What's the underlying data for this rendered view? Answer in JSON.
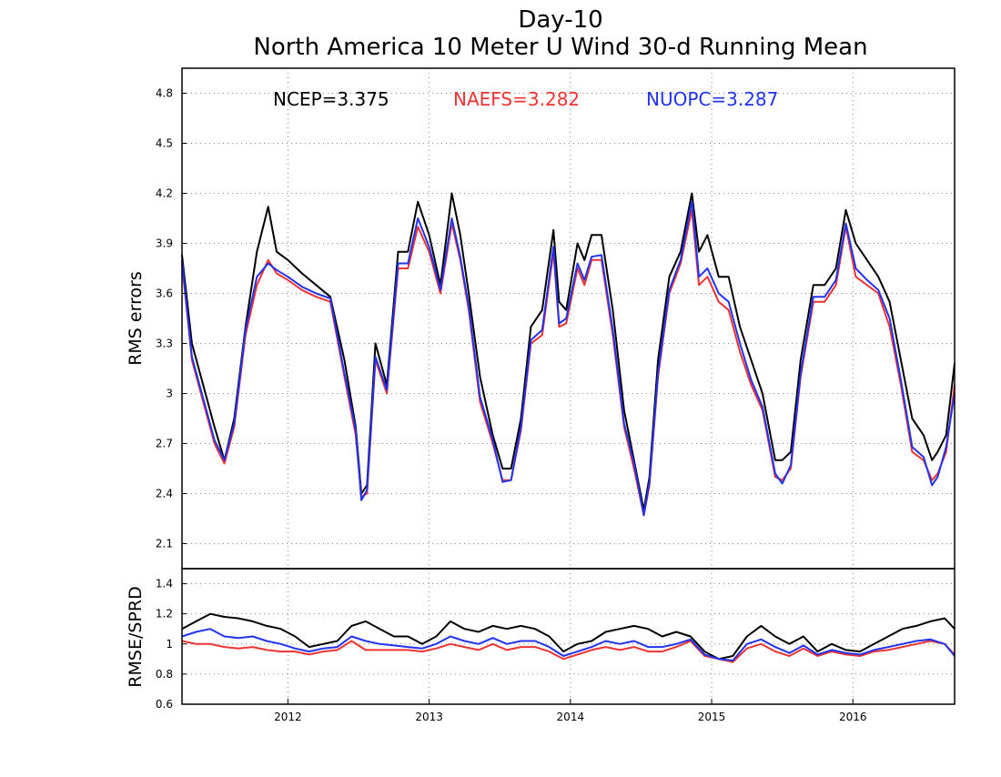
{
  "chart_data": {
    "type": "line",
    "title": "Day-10",
    "subtitle": "North America 10 Meter U Wind 30-d Running Mean",
    "x_tick_labels": [
      "2012",
      "2013",
      "2014",
      "2015",
      "2016"
    ],
    "x_tick_positions": [
      2012.0,
      2013.0,
      2014.0,
      2015.0,
      2016.0
    ],
    "xlim": [
      2011.25,
      2016.72
    ],
    "colors": {
      "NCEP": "#000000",
      "NAEFS": "#ee3333",
      "NUOPC": "#2233ee"
    },
    "panels": [
      {
        "ylabel": "RMS errors",
        "ylim": [
          1.95,
          4.95
        ],
        "y_ticks": [
          2.1,
          2.4,
          2.7,
          3.0,
          3.3,
          3.6,
          3.9,
          4.2,
          4.5,
          4.8
        ],
        "y_tick_labels": [
          "2.1",
          "2.4",
          "2.7",
          "3",
          "3.3",
          "3.6",
          "3.9",
          "4.2",
          "4.5",
          "4.8"
        ],
        "grid": true,
        "legend": [
          {
            "series": "NCEP",
            "label": "NCEP=3.375"
          },
          {
            "series": "NAEFS",
            "label": "NAEFS=3.282"
          },
          {
            "series": "NUOPC",
            "label": "NUOPC=3.287"
          }
        ],
        "series": [
          {
            "name": "NCEP",
            "x": [
              2011.25,
              2011.32,
              2011.4,
              2011.48,
              2011.55,
              2011.62,
              2011.7,
              2011.78,
              2011.86,
              2011.92,
              2012.0,
              2012.1,
              2012.2,
              2012.3,
              2012.4,
              2012.48,
              2012.52,
              2012.56,
              2012.62,
              2012.7,
              2012.78,
              2012.85,
              2012.92,
              2013.0,
              2013.08,
              2013.16,
              2013.22,
              2013.28,
              2013.36,
              2013.45,
              2013.52,
              2013.58,
              2013.65,
              2013.72,
              2013.8,
              2013.88,
              2013.92,
              2013.97,
              2014.05,
              2014.1,
              2014.15,
              2014.22,
              2014.3,
              2014.38,
              2014.45,
              2014.52,
              2014.56,
              2014.62,
              2014.7,
              2014.78,
              2014.86,
              2014.91,
              2014.97,
              2015.05,
              2015.12,
              2015.2,
              2015.28,
              2015.36,
              2015.45,
              2015.5,
              2015.56,
              2015.63,
              2015.72,
              2015.8,
              2015.88,
              2015.95,
              2016.02,
              2016.1,
              2016.18,
              2016.26,
              2016.34,
              2016.42,
              2016.5,
              2016.56,
              2016.6,
              2016.66,
              2016.72
            ],
            "y": [
              3.83,
              3.3,
              3.05,
              2.8,
              2.6,
              2.85,
              3.4,
              3.85,
              4.12,
              3.85,
              3.8,
              3.72,
              3.65,
              3.58,
              3.2,
              2.8,
              2.4,
              2.45,
              3.3,
              3.05,
              3.85,
              3.85,
              4.15,
              3.95,
              3.65,
              4.2,
              3.95,
              3.6,
              3.1,
              2.75,
              2.55,
              2.55,
              2.85,
              3.4,
              3.5,
              3.98,
              3.55,
              3.5,
              3.9,
              3.8,
              3.95,
              3.95,
              3.5,
              2.9,
              2.6,
              2.3,
              2.5,
              3.2,
              3.7,
              3.85,
              4.2,
              3.85,
              3.95,
              3.7,
              3.7,
              3.4,
              3.2,
              3.0,
              2.6,
              2.6,
              2.65,
              3.2,
              3.65,
              3.65,
              3.75,
              4.1,
              3.9,
              3.8,
              3.7,
              3.55,
              3.2,
              2.85,
              2.75,
              2.6,
              2.65,
              2.75,
              3.18
            ]
          },
          {
            "name": "NAEFS",
            "x": [
              2011.25,
              2011.32,
              2011.4,
              2011.48,
              2011.55,
              2011.62,
              2011.7,
              2011.78,
              2011.86,
              2011.92,
              2012.0,
              2012.1,
              2012.2,
              2012.3,
              2012.4,
              2012.48,
              2012.52,
              2012.56,
              2012.62,
              2012.7,
              2012.78,
              2012.85,
              2012.92,
              2013.0,
              2013.08,
              2013.16,
              2013.22,
              2013.28,
              2013.36,
              2013.45,
              2013.52,
              2013.58,
              2013.65,
              2013.72,
              2013.8,
              2013.88,
              2013.92,
              2013.97,
              2014.05,
              2014.1,
              2014.15,
              2014.22,
              2014.3,
              2014.38,
              2014.45,
              2014.52,
              2014.56,
              2014.62,
              2014.7,
              2014.78,
              2014.86,
              2014.91,
              2014.97,
              2015.05,
              2015.12,
              2015.2,
              2015.28,
              2015.36,
              2015.45,
              2015.5,
              2015.56,
              2015.63,
              2015.72,
              2015.8,
              2015.88,
              2015.95,
              2016.02,
              2016.1,
              2016.18,
              2016.26,
              2016.34,
              2016.42,
              2016.5,
              2016.56,
              2016.6,
              2016.66,
              2016.72
            ],
            "y": [
              3.78,
              3.2,
              2.95,
              2.7,
              2.58,
              2.8,
              3.35,
              3.65,
              3.8,
              3.72,
              3.68,
              3.62,
              3.58,
              3.55,
              3.1,
              2.75,
              2.38,
              2.4,
              3.2,
              3.0,
              3.75,
              3.75,
              4.0,
              3.85,
              3.6,
              4.02,
              3.8,
              3.5,
              2.95,
              2.7,
              2.48,
              2.48,
              2.78,
              3.3,
              3.35,
              3.85,
              3.4,
              3.42,
              3.75,
              3.65,
              3.8,
              3.8,
              3.35,
              2.8,
              2.55,
              2.27,
              2.45,
              3.1,
              3.6,
              3.78,
              4.1,
              3.65,
              3.7,
              3.55,
              3.5,
              3.25,
              3.05,
              2.9,
              2.5,
              2.48,
              2.55,
              3.1,
              3.55,
              3.55,
              3.65,
              4.0,
              3.7,
              3.65,
              3.6,
              3.4,
              3.05,
              2.65,
              2.6,
              2.48,
              2.52,
              2.65,
              3.05
            ]
          },
          {
            "name": "NUOPC",
            "x": [
              2011.25,
              2011.32,
              2011.4,
              2011.48,
              2011.55,
              2011.62,
              2011.7,
              2011.78,
              2011.86,
              2011.92,
              2012.0,
              2012.1,
              2012.2,
              2012.3,
              2012.4,
              2012.48,
              2012.52,
              2012.56,
              2012.62,
              2012.7,
              2012.78,
              2012.85,
              2012.92,
              2013.0,
              2013.08,
              2013.16,
              2013.22,
              2013.28,
              2013.36,
              2013.45,
              2013.52,
              2013.58,
              2013.65,
              2013.72,
              2013.8,
              2013.88,
              2013.92,
              2013.97,
              2014.05,
              2014.1,
              2014.15,
              2014.22,
              2014.3,
              2014.38,
              2014.45,
              2014.52,
              2014.56,
              2014.62,
              2014.7,
              2014.78,
              2014.86,
              2014.91,
              2014.97,
              2015.05,
              2015.12,
              2015.2,
              2015.28,
              2015.36,
              2015.45,
              2015.5,
              2015.56,
              2015.63,
              2015.72,
              2015.8,
              2015.88,
              2015.95,
              2016.02,
              2016.1,
              2016.18,
              2016.26,
              2016.34,
              2016.42,
              2016.5,
              2016.56,
              2016.6,
              2016.66,
              2016.72
            ],
            "y": [
              3.8,
              3.22,
              2.97,
              2.72,
              2.6,
              2.82,
              3.38,
              3.7,
              3.78,
              3.74,
              3.7,
              3.64,
              3.6,
              3.57,
              3.12,
              2.78,
              2.36,
              2.42,
              3.22,
              3.02,
              3.78,
              3.78,
              4.05,
              3.88,
              3.62,
              4.05,
              3.82,
              3.52,
              2.98,
              2.72,
              2.47,
              2.48,
              2.8,
              3.32,
              3.38,
              3.88,
              3.42,
              3.45,
              3.78,
              3.68,
              3.82,
              3.83,
              3.38,
              2.82,
              2.58,
              2.27,
              2.47,
              3.12,
              3.62,
              3.8,
              4.15,
              3.7,
              3.75,
              3.6,
              3.55,
              3.3,
              3.08,
              2.92,
              2.52,
              2.46,
              2.57,
              3.12,
              3.58,
              3.58,
              3.68,
              4.02,
              3.75,
              3.68,
              3.62,
              3.45,
              3.08,
              2.68,
              2.62,
              2.45,
              2.5,
              2.68,
              3.0
            ]
          }
        ]
      },
      {
        "ylabel": "RMSE/SPRD",
        "ylim": [
          0.6,
          1.5
        ],
        "y_ticks": [
          0.6,
          0.8,
          1.0,
          1.2,
          1.4
        ],
        "y_tick_labels": [
          "0.6",
          "0.8",
          "1",
          "1.2",
          "1.4"
        ],
        "grid": true,
        "series": [
          {
            "name": "NCEP",
            "x": [
              2011.25,
              2011.35,
              2011.45,
              2011.55,
              2011.65,
              2011.75,
              2011.85,
              2011.95,
              2012.05,
              2012.15,
              2012.25,
              2012.35,
              2012.45,
              2012.55,
              2012.65,
              2012.75,
              2012.85,
              2012.95,
              2013.05,
              2013.15,
              2013.25,
              2013.35,
              2013.45,
              2013.55,
              2013.65,
              2013.75,
              2013.85,
              2013.95,
              2014.05,
              2014.15,
              2014.25,
              2014.35,
              2014.45,
              2014.55,
              2014.65,
              2014.75,
              2014.85,
              2014.95,
              2015.05,
              2015.15,
              2015.25,
              2015.35,
              2015.45,
              2015.55,
              2015.65,
              2015.75,
              2015.85,
              2015.95,
              2016.05,
              2016.15,
              2016.25,
              2016.35,
              2016.45,
              2016.55,
              2016.65,
              2016.72
            ],
            "y": [
              1.1,
              1.15,
              1.2,
              1.18,
              1.17,
              1.15,
              1.12,
              1.1,
              1.05,
              0.98,
              1.0,
              1.02,
              1.12,
              1.15,
              1.1,
              1.05,
              1.05,
              1.0,
              1.05,
              1.15,
              1.1,
              1.08,
              1.12,
              1.1,
              1.12,
              1.1,
              1.05,
              0.95,
              1.0,
              1.02,
              1.08,
              1.1,
              1.12,
              1.1,
              1.05,
              1.08,
              1.05,
              0.95,
              0.9,
              0.92,
              1.05,
              1.12,
              1.05,
              1.0,
              1.05,
              0.95,
              1.0,
              0.96,
              0.95,
              1.0,
              1.05,
              1.1,
              1.12,
              1.15,
              1.17,
              1.1
            ]
          },
          {
            "name": "NAEFS",
            "x": [
              2011.25,
              2011.35,
              2011.45,
              2011.55,
              2011.65,
              2011.75,
              2011.85,
              2011.95,
              2012.05,
              2012.15,
              2012.25,
              2012.35,
              2012.45,
              2012.55,
              2012.65,
              2012.75,
              2012.85,
              2012.95,
              2013.05,
              2013.15,
              2013.25,
              2013.35,
              2013.45,
              2013.55,
              2013.65,
              2013.75,
              2013.85,
              2013.95,
              2014.05,
              2014.15,
              2014.25,
              2014.35,
              2014.45,
              2014.55,
              2014.65,
              2014.75,
              2014.85,
              2014.95,
              2015.05,
              2015.15,
              2015.25,
              2015.35,
              2015.45,
              2015.55,
              2015.65,
              2015.75,
              2015.85,
              2015.95,
              2016.05,
              2016.15,
              2016.25,
              2016.35,
              2016.45,
              2016.55,
              2016.65,
              2016.72
            ],
            "y": [
              1.02,
              1.0,
              1.0,
              0.98,
              0.97,
              0.98,
              0.96,
              0.95,
              0.95,
              0.93,
              0.95,
              0.96,
              1.02,
              0.96,
              0.96,
              0.96,
              0.96,
              0.95,
              0.97,
              1.0,
              0.98,
              0.96,
              1.0,
              0.96,
              0.98,
              0.98,
              0.95,
              0.9,
              0.93,
              0.96,
              0.98,
              0.96,
              0.98,
              0.95,
              0.95,
              0.98,
              1.02,
              0.92,
              0.9,
              0.88,
              0.97,
              1.0,
              0.95,
              0.92,
              0.97,
              0.92,
              0.95,
              0.93,
              0.92,
              0.95,
              0.96,
              0.98,
              1.0,
              1.02,
              1.0,
              0.93
            ]
          },
          {
            "name": "NUOPC",
            "x": [
              2011.25,
              2011.35,
              2011.45,
              2011.55,
              2011.65,
              2011.75,
              2011.85,
              2011.95,
              2012.05,
              2012.15,
              2012.25,
              2012.35,
              2012.45,
              2012.55,
              2012.65,
              2012.75,
              2012.85,
              2012.95,
              2013.05,
              2013.15,
              2013.25,
              2013.35,
              2013.45,
              2013.55,
              2013.65,
              2013.75,
              2013.85,
              2013.95,
              2014.05,
              2014.15,
              2014.25,
              2014.35,
              2014.45,
              2014.55,
              2014.65,
              2014.75,
              2014.85,
              2014.95,
              2015.05,
              2015.15,
              2015.25,
              2015.35,
              2015.45,
              2015.55,
              2015.65,
              2015.75,
              2015.85,
              2015.95,
              2016.05,
              2016.15,
              2016.25,
              2016.35,
              2016.45,
              2016.55,
              2016.65,
              2016.72
            ],
            "y": [
              1.05,
              1.08,
              1.1,
              1.05,
              1.04,
              1.05,
              1.02,
              1.0,
              0.97,
              0.95,
              0.97,
              0.98,
              1.05,
              1.02,
              1.0,
              0.99,
              0.98,
              0.97,
              1.0,
              1.05,
              1.02,
              1.0,
              1.04,
              1.0,
              1.02,
              1.02,
              0.98,
              0.92,
              0.95,
              0.98,
              1.02,
              1.0,
              1.02,
              0.98,
              0.98,
              1.0,
              1.03,
              0.93,
              0.9,
              0.89,
              1.0,
              1.03,
              0.98,
              0.94,
              0.99,
              0.93,
              0.96,
              0.94,
              0.93,
              0.96,
              0.98,
              1.0,
              1.02,
              1.03,
              1.0,
              0.92
            ]
          }
        ]
      }
    ]
  }
}
